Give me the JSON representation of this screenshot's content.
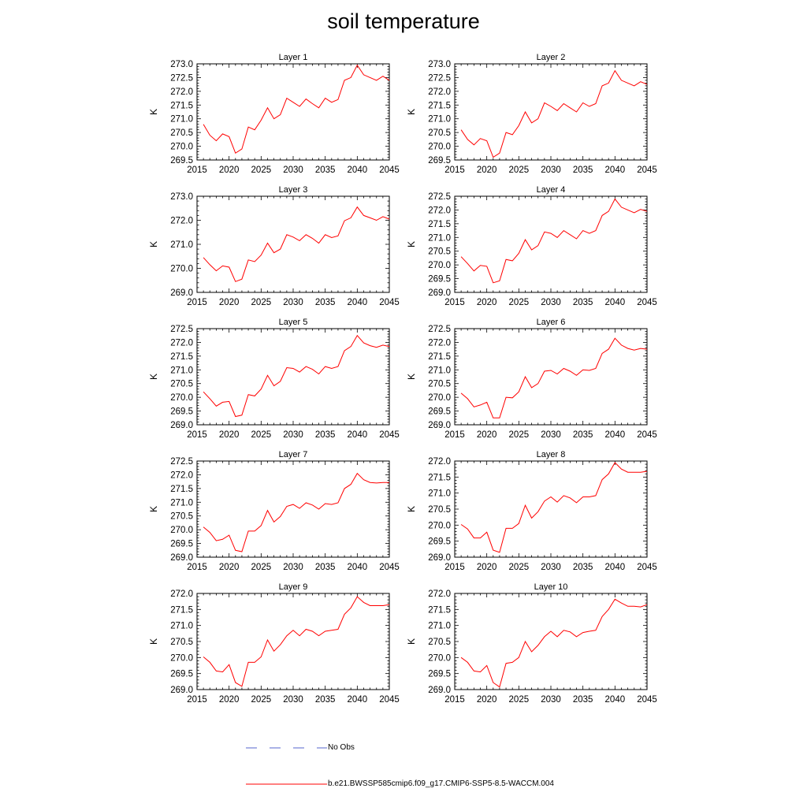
{
  "title": "soil temperature",
  "legend": {
    "obs_label": "No Obs",
    "model_label": "b.e21.BWSSP585cmip6.f09_g17.CMIP6-SSP5-8.5-WACCM.004",
    "obs_color": "#5566cc",
    "model_color": "#ff0000"
  },
  "chart_data": [
    {
      "type": "line",
      "title": "Layer 1",
      "ylabel": "K",
      "xlim": [
        2015,
        2045
      ],
      "ylim": [
        269.5,
        273.0
      ],
      "xticks": [
        "2015",
        "2020",
        "2025",
        "2030",
        "2035",
        "2040",
        "2045"
      ],
      "yticks": [
        "269.5",
        "270.0",
        "270.5",
        "271.0",
        "271.5",
        "272.0",
        "272.5",
        "273.0"
      ],
      "x": [
        2016,
        2017,
        2018,
        2019,
        2020,
        2021,
        2022,
        2023,
        2024,
        2025,
        2026,
        2027,
        2028,
        2029,
        2030,
        2031,
        2032,
        2033,
        2034,
        2035,
        2036,
        2037,
        2038,
        2039,
        2040,
        2041,
        2042,
        2043,
        2044,
        2045
      ],
      "values": [
        270.8,
        270.4,
        270.2,
        270.45,
        270.35,
        269.75,
        269.9,
        270.7,
        270.6,
        270.95,
        271.4,
        271.0,
        271.15,
        271.75,
        271.6,
        271.45,
        271.72,
        271.55,
        271.4,
        271.75,
        271.6,
        271.7,
        272.4,
        272.5,
        272.95,
        272.6,
        272.5,
        272.4,
        272.55,
        272.4
      ],
      "series": [
        {
          "name": "b.e21.BWSSP585cmip6.f09_g17.CMIP6-SSP5-8.5-WACCM.004"
        }
      ]
    },
    {
      "type": "line",
      "title": "Layer 2",
      "ylabel": "K",
      "xlim": [
        2015,
        2045
      ],
      "ylim": [
        269.5,
        273.0
      ],
      "xticks": [
        "2015",
        "2020",
        "2025",
        "2030",
        "2035",
        "2040",
        "2045"
      ],
      "yticks": [
        "269.5",
        "270.0",
        "270.5",
        "271.0",
        "271.5",
        "272.0",
        "272.5",
        "273.0"
      ],
      "x": [
        2016,
        2017,
        2018,
        2019,
        2020,
        2021,
        2022,
        2023,
        2024,
        2025,
        2026,
        2027,
        2028,
        2029,
        2030,
        2031,
        2032,
        2033,
        2034,
        2035,
        2036,
        2037,
        2038,
        2039,
        2040,
        2041,
        2042,
        2043,
        2044,
        2045
      ],
      "values": [
        270.6,
        270.25,
        270.05,
        270.28,
        270.2,
        269.6,
        269.75,
        270.5,
        270.42,
        270.75,
        271.25,
        270.85,
        271.0,
        271.58,
        271.45,
        271.3,
        271.55,
        271.4,
        271.25,
        271.58,
        271.45,
        271.55,
        272.2,
        272.3,
        272.75,
        272.4,
        272.3,
        272.2,
        272.35,
        272.25
      ],
      "series": [
        {
          "name": "b.e21.BWSSP585cmip6.f09_g17.CMIP6-SSP5-8.5-WACCM.004"
        }
      ]
    },
    {
      "type": "line",
      "title": "Layer 3",
      "ylabel": "K",
      "xlim": [
        2015,
        2045
      ],
      "ylim": [
        269.0,
        273.0
      ],
      "xticks": [
        "2015",
        "2020",
        "2025",
        "2030",
        "2035",
        "2040",
        "2045"
      ],
      "yticks": [
        "269.0",
        "270.0",
        "271.0",
        "272.0",
        "273.0"
      ],
      "x": [
        2016,
        2017,
        2018,
        2019,
        2020,
        2021,
        2022,
        2023,
        2024,
        2025,
        2026,
        2027,
        2028,
        2029,
        2030,
        2031,
        2032,
        2033,
        2034,
        2035,
        2036,
        2037,
        2038,
        2039,
        2040,
        2041,
        2042,
        2043,
        2044,
        2045
      ],
      "values": [
        270.45,
        270.15,
        269.9,
        270.1,
        270.05,
        269.45,
        269.55,
        270.35,
        270.28,
        270.55,
        271.05,
        270.65,
        270.8,
        271.4,
        271.3,
        271.15,
        271.4,
        271.25,
        271.05,
        271.4,
        271.28,
        271.35,
        271.98,
        272.1,
        272.55,
        272.2,
        272.1,
        272.0,
        272.15,
        272.05
      ],
      "series": [
        {
          "name": "b.e21.BWSSP585cmip6.f09_g17.CMIP6-SSP5-8.5-WACCM.004"
        }
      ]
    },
    {
      "type": "line",
      "title": "Layer 4",
      "ylabel": "K",
      "xlim": [
        2015,
        2045
      ],
      "ylim": [
        269.0,
        272.5
      ],
      "xticks": [
        "2015",
        "2020",
        "2025",
        "2030",
        "2035",
        "2040",
        "2045"
      ],
      "yticks": [
        "269.0",
        "269.5",
        "270.0",
        "270.5",
        "271.0",
        "271.5",
        "272.0",
        "272.5"
      ],
      "x": [
        2016,
        2017,
        2018,
        2019,
        2020,
        2021,
        2022,
        2023,
        2024,
        2025,
        2026,
        2027,
        2028,
        2029,
        2030,
        2031,
        2032,
        2033,
        2034,
        2035,
        2036,
        2037,
        2038,
        2039,
        2040,
        2041,
        2042,
        2043,
        2044,
        2045
      ],
      "values": [
        270.3,
        270.05,
        269.78,
        269.98,
        269.95,
        269.35,
        269.42,
        270.2,
        270.15,
        270.42,
        270.92,
        270.55,
        270.7,
        271.2,
        271.15,
        271.0,
        271.25,
        271.1,
        270.95,
        271.25,
        271.15,
        271.25,
        271.8,
        271.95,
        272.4,
        272.1,
        272.0,
        271.9,
        272.02,
        271.95
      ],
      "series": [
        {
          "name": "b.e21.BWSSP585cmip6.f09_g17.CMIP6-SSP5-8.5-WACCM.004"
        }
      ]
    },
    {
      "type": "line",
      "title": "Layer 5",
      "ylabel": "K",
      "xlim": [
        2015,
        2045
      ],
      "ylim": [
        269.0,
        272.5
      ],
      "xticks": [
        "2015",
        "2020",
        "2025",
        "2030",
        "2035",
        "2040",
        "2045"
      ],
      "yticks": [
        "269.0",
        "269.5",
        "270.0",
        "270.5",
        "271.0",
        "271.5",
        "272.0",
        "272.5"
      ],
      "x": [
        2016,
        2017,
        2018,
        2019,
        2020,
        2021,
        2022,
        2023,
        2024,
        2025,
        2026,
        2027,
        2028,
        2029,
        2030,
        2031,
        2032,
        2033,
        2034,
        2035,
        2036,
        2037,
        2038,
        2039,
        2040,
        2041,
        2042,
        2043,
        2044,
        2045
      ],
      "values": [
        270.2,
        269.95,
        269.68,
        269.82,
        269.85,
        269.3,
        269.35,
        270.1,
        270.05,
        270.3,
        270.8,
        270.42,
        270.58,
        271.08,
        271.05,
        270.92,
        271.12,
        271.02,
        270.85,
        271.12,
        271.05,
        271.12,
        271.7,
        271.85,
        272.25,
        271.98,
        271.88,
        271.82,
        271.9,
        271.85
      ],
      "series": [
        {
          "name": "b.e21.BWSSP585cmip6.f09_g17.CMIP6-SSP5-8.5-WACCM.004"
        }
      ]
    },
    {
      "type": "line",
      "title": "Layer 6",
      "ylabel": "K",
      "xlim": [
        2015,
        2045
      ],
      "ylim": [
        269.0,
        272.5
      ],
      "xticks": [
        "2015",
        "2020",
        "2025",
        "2030",
        "2035",
        "2040",
        "2045"
      ],
      "yticks": [
        "269.0",
        "269.5",
        "270.0",
        "270.5",
        "271.0",
        "271.5",
        "272.0",
        "272.5"
      ],
      "x": [
        2016,
        2017,
        2018,
        2019,
        2020,
        2021,
        2022,
        2023,
        2024,
        2025,
        2026,
        2027,
        2028,
        2029,
        2030,
        2031,
        2032,
        2033,
        2034,
        2035,
        2036,
        2037,
        2038,
        2039,
        2040,
        2041,
        2042,
        2043,
        2044,
        2045
      ],
      "values": [
        270.15,
        269.95,
        269.65,
        269.72,
        269.82,
        269.25,
        269.25,
        270.0,
        269.98,
        270.2,
        270.75,
        270.35,
        270.5,
        270.95,
        270.98,
        270.85,
        271.05,
        270.95,
        270.8,
        271.0,
        270.98,
        271.05,
        271.6,
        271.75,
        272.15,
        271.9,
        271.78,
        271.72,
        271.78,
        271.75
      ],
      "series": [
        {
          "name": "b.e21.BWSSP585cmip6.f09_g17.CMIP6-SSP5-8.5-WACCM.004"
        }
      ]
    },
    {
      "type": "line",
      "title": "Layer 7",
      "ylabel": "K",
      "xlim": [
        2015,
        2045
      ],
      "ylim": [
        269.0,
        272.5
      ],
      "xticks": [
        "2015",
        "2020",
        "2025",
        "2030",
        "2035",
        "2040",
        "2045"
      ],
      "yticks": [
        "269.0",
        "269.5",
        "270.0",
        "270.5",
        "271.0",
        "271.5",
        "272.0",
        "272.5"
      ],
      "x": [
        2016,
        2017,
        2018,
        2019,
        2020,
        2021,
        2022,
        2023,
        2024,
        2025,
        2026,
        2027,
        2028,
        2029,
        2030,
        2031,
        2032,
        2033,
        2034,
        2035,
        2036,
        2037,
        2038,
        2039,
        2040,
        2041,
        2042,
        2043,
        2044,
        2045
      ],
      "values": [
        270.1,
        269.9,
        269.6,
        269.65,
        269.8,
        269.25,
        269.2,
        269.95,
        269.95,
        270.15,
        270.7,
        270.28,
        270.48,
        270.85,
        270.92,
        270.78,
        270.98,
        270.9,
        270.75,
        270.95,
        270.92,
        270.98,
        271.5,
        271.65,
        272.05,
        271.82,
        271.72,
        271.7,
        271.72,
        271.72
      ],
      "series": [
        {
          "name": "b.e21.BWSSP585cmip6.f09_g17.CMIP6-SSP5-8.5-WACCM.004"
        }
      ]
    },
    {
      "type": "line",
      "title": "Layer 8",
      "ylabel": "K",
      "xlim": [
        2015,
        2045
      ],
      "ylim": [
        269.0,
        272.0
      ],
      "xticks": [
        "2015",
        "2020",
        "2025",
        "2030",
        "2035",
        "2040",
        "2045"
      ],
      "yticks": [
        "269.0",
        "269.5",
        "270.0",
        "270.5",
        "271.0",
        "271.5",
        "272.0"
      ],
      "x": [
        2016,
        2017,
        2018,
        2019,
        2020,
        2021,
        2022,
        2023,
        2024,
        2025,
        2026,
        2027,
        2028,
        2029,
        2030,
        2031,
        2032,
        2033,
        2034,
        2035,
        2036,
        2037,
        2038,
        2039,
        2040,
        2041,
        2042,
        2043,
        2044,
        2045
      ],
      "values": [
        270.02,
        269.88,
        269.6,
        269.6,
        269.78,
        269.22,
        269.15,
        269.9,
        269.9,
        270.05,
        270.62,
        270.22,
        270.42,
        270.75,
        270.88,
        270.72,
        270.92,
        270.85,
        270.7,
        270.88,
        270.88,
        270.92,
        271.42,
        271.6,
        271.95,
        271.75,
        271.65,
        271.65,
        271.65,
        271.68
      ],
      "series": [
        {
          "name": "b.e21.BWSSP585cmip6.f09_g17.CMIP6-SSP5-8.5-WACCM.004"
        }
      ]
    },
    {
      "type": "line",
      "title": "Layer 9",
      "ylabel": "K",
      "xlim": [
        2015,
        2045
      ],
      "ylim": [
        269.0,
        272.0
      ],
      "xticks": [
        "2015",
        "2020",
        "2025",
        "2030",
        "2035",
        "2040",
        "2045"
      ],
      "yticks": [
        "269.0",
        "269.5",
        "270.0",
        "270.5",
        "271.0",
        "271.5",
        "272.0"
      ],
      "x": [
        2016,
        2017,
        2018,
        2019,
        2020,
        2021,
        2022,
        2023,
        2024,
        2025,
        2026,
        2027,
        2028,
        2029,
        2030,
        2031,
        2032,
        2033,
        2034,
        2035,
        2036,
        2037,
        2038,
        2039,
        2040,
        2041,
        2042,
        2043,
        2044,
        2045
      ],
      "values": [
        270.02,
        269.85,
        269.58,
        269.55,
        269.78,
        269.22,
        269.1,
        269.85,
        269.85,
        270.02,
        270.55,
        270.2,
        270.4,
        270.68,
        270.85,
        270.68,
        270.88,
        270.82,
        270.68,
        270.82,
        270.85,
        270.88,
        271.35,
        271.55,
        271.9,
        271.72,
        271.62,
        271.62,
        271.62,
        271.65
      ],
      "series": [
        {
          "name": "b.e21.BWSSP585cmip6.f09_g17.CMIP6-SSP5-8.5-WACCM.004"
        }
      ]
    },
    {
      "type": "line",
      "title": "Layer 10",
      "ylabel": "K",
      "xlim": [
        2015,
        2045
      ],
      "ylim": [
        269.0,
        272.0
      ],
      "xticks": [
        "2015",
        "2020",
        "2025",
        "2030",
        "2035",
        "2040",
        "2045"
      ],
      "yticks": [
        "269.0",
        "269.5",
        "270.0",
        "270.5",
        "271.0",
        "271.5",
        "272.0"
      ],
      "x": [
        2016,
        2017,
        2018,
        2019,
        2020,
        2021,
        2022,
        2023,
        2024,
        2025,
        2026,
        2027,
        2028,
        2029,
        2030,
        2031,
        2032,
        2033,
        2034,
        2035,
        2036,
        2037,
        2038,
        2039,
        2040,
        2041,
        2042,
        2043,
        2044,
        2045
      ],
      "values": [
        270.0,
        269.85,
        269.58,
        269.55,
        269.75,
        269.22,
        269.08,
        269.82,
        269.85,
        270.0,
        270.5,
        270.18,
        270.38,
        270.65,
        270.82,
        270.65,
        270.85,
        270.8,
        270.65,
        270.78,
        270.82,
        270.85,
        271.28,
        271.5,
        271.82,
        271.7,
        271.6,
        271.6,
        271.58,
        271.65
      ],
      "series": [
        {
          "name": "b.e21.BWSSP585cmip6.f09_g17.CMIP6-SSP5-8.5-WACCM.004"
        }
      ]
    }
  ]
}
